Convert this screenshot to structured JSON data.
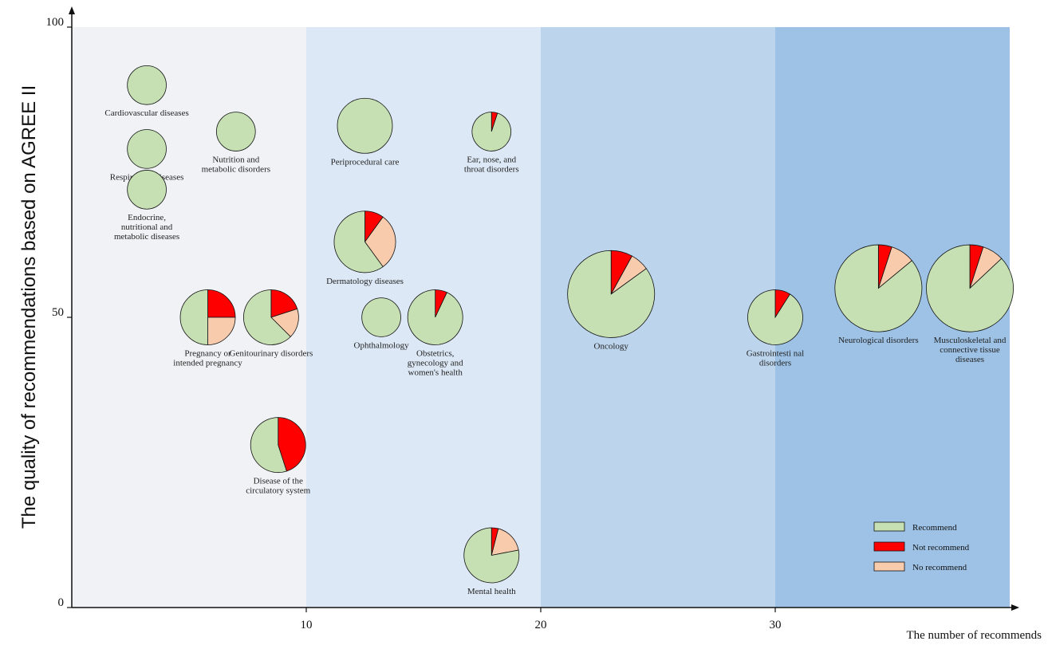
{
  "chart_data": {
    "type": "scatter",
    "subtype": "pie-bubble",
    "ylabel": "The quality of recommendations based on AGREE II",
    "xlabel": "The number of recommends",
    "xlim": [
      0,
      40
    ],
    "ylim": [
      0,
      100
    ],
    "xticks": [
      "10",
      "20",
      "30"
    ],
    "yticks": [
      "0",
      "50",
      "100"
    ],
    "bands": [
      {
        "from": 0,
        "to": 10,
        "color": "#f0f2f5"
      },
      {
        "from": 10,
        "to": 20,
        "color": "#dce8f5"
      },
      {
        "from": 20,
        "to": 30,
        "color": "#bcd5ec"
      },
      {
        "from": 30,
        "to": 40,
        "color": "#9dc2e6"
      }
    ],
    "colors": {
      "Recommend": "#c6e0b4",
      "Not recommend": "#ff0000",
      "No recommend": "#f8cbad"
    },
    "legend": {
      "position": "bottom-right",
      "items": [
        "Recommend",
        "Not recommend",
        "No recommend"
      ]
    },
    "points": [
      {
        "label": "Cardiovascular diseases",
        "x": 3.2,
        "y": 90,
        "n": 4,
        "slices": [
          1,
          0,
          0
        ]
      },
      {
        "label": "Respiratory Diseases",
        "x": 3.2,
        "y": 79,
        "n": 4,
        "slices": [
          1,
          0,
          0
        ]
      },
      {
        "label": "Endocrine, nutritional and metabolic diseases",
        "x": 3.2,
        "y": 72,
        "n": 4,
        "slices": [
          1,
          0,
          0
        ]
      },
      {
        "label": "Nutrition and metabolic disorders",
        "x": 7,
        "y": 82,
        "n": 4,
        "slices": [
          1,
          0,
          0
        ]
      },
      {
        "label": "Pregnancy or intended pregnancy",
        "x": 5.8,
        "y": 50,
        "n": 8,
        "slices": [
          0.5,
          0.25,
          0.25
        ]
      },
      {
        "label": "Genitourinary disorders",
        "x": 8.5,
        "y": 50,
        "n": 8,
        "slices": [
          0.625,
          0.2,
          0.175
        ]
      },
      {
        "label": "Disease of the circulatory system",
        "x": 8.8,
        "y": 28,
        "n": 8,
        "slices": [
          0.55,
          0.45,
          0
        ]
      },
      {
        "label": "Periprocedural care",
        "x": 12.5,
        "y": 83,
        "n": 8,
        "slices": [
          1,
          0,
          0
        ]
      },
      {
        "label": "Dermatology diseases",
        "x": 12.5,
        "y": 63,
        "n": 10,
        "slices": [
          0.6,
          0.1,
          0.3
        ]
      },
      {
        "label": "Ophthalmology",
        "x": 13.2,
        "y": 50,
        "n": 4,
        "slices": [
          1,
          0,
          0
        ]
      },
      {
        "label": "Obstetrics, gynecology and women's health",
        "x": 15.5,
        "y": 50,
        "n": 8,
        "slices": [
          0.93,
          0.07,
          0
        ]
      },
      {
        "label": "Ear, nose, and throat disorders",
        "x": 17.9,
        "y": 82,
        "n": 4,
        "slices": [
          0.95,
          0.05,
          0
        ]
      },
      {
        "label": "Mental health",
        "x": 17.9,
        "y": 9,
        "n": 8,
        "slices": [
          0.78,
          0.04,
          0.18
        ]
      },
      {
        "label": "Oncology",
        "x": 23,
        "y": 54,
        "n": 20,
        "slices": [
          0.85,
          0.08,
          0.07
        ]
      },
      {
        "label": "Gastrointesti nal disorders",
        "x": 30,
        "y": 50,
        "n": 8,
        "slices": [
          0.91,
          0.09,
          0
        ]
      },
      {
        "label": "Neurological disorders",
        "x": 34.4,
        "y": 55,
        "n": 20,
        "slices": [
          0.86,
          0.05,
          0.09
        ]
      },
      {
        "label": "Musculoskeletal and connective tissue diseases",
        "x": 38.3,
        "y": 55,
        "n": 20,
        "slices": [
          0.87,
          0.05,
          0.08
        ]
      }
    ]
  }
}
